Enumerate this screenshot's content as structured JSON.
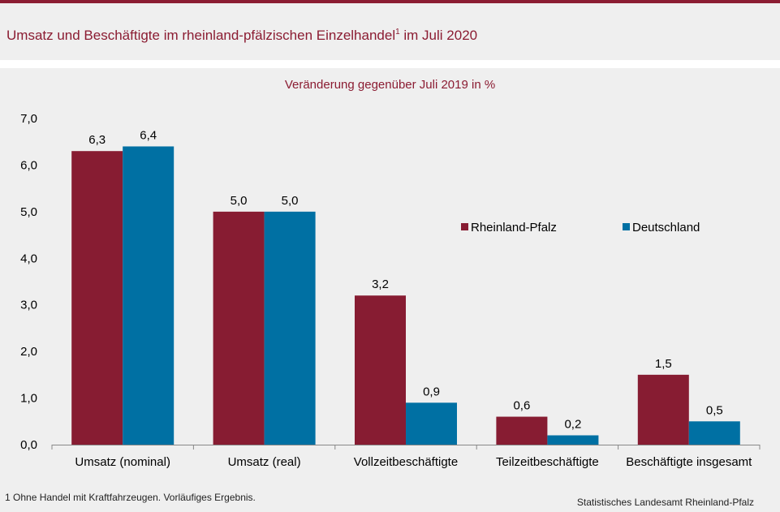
{
  "header": {
    "title": "Umsatz und Beschäftigte im rheinland-pfälzischen Einzelhandel",
    "title_sup": "1",
    "title_suffix": " im Juli 2020"
  },
  "colors": {
    "accent": "#8b1c32",
    "rheinland_pfalz": "#871c32",
    "deutschland": "#0070a3"
  },
  "chart_data": {
    "type": "bar",
    "title": "Veränderung gegenüber Juli 2019 in %",
    "categories": [
      "Umsatz (nominal)",
      "Umsatz (real)",
      "Vollzeitbeschäftigte",
      "Teilzeitbeschäftigte",
      "Beschäftigte insgesamt"
    ],
    "series": [
      {
        "name": "Rheinland-Pfalz",
        "values": [
          6.3,
          5.0,
          3.2,
          0.6,
          1.5
        ],
        "labels": [
          "6,3",
          "5,0",
          "3,2",
          "0,6",
          "1,5"
        ]
      },
      {
        "name": "Deutschland",
        "values": [
          6.4,
          5.0,
          0.9,
          0.2,
          0.5
        ],
        "labels": [
          "6,4",
          "5,0",
          "0,9",
          "0,2",
          "0,5"
        ]
      }
    ],
    "ylim": [
      0,
      7
    ],
    "yticks": [
      0,
      1,
      2,
      3,
      4,
      5,
      6,
      7
    ],
    "ytick_labels": [
      "0,0",
      "1,0",
      "2,0",
      "3,0",
      "4,0",
      "5,0",
      "6,0",
      "7,0"
    ],
    "legend_position": "top-right",
    "grid": false
  },
  "footnote": {
    "number": "1",
    "text": " Ohne Handel mit Kraftfahrzeugen. Vorläufiges Ergebnis."
  },
  "source": "Statistisches Landesamt Rheinland-Pfalz"
}
